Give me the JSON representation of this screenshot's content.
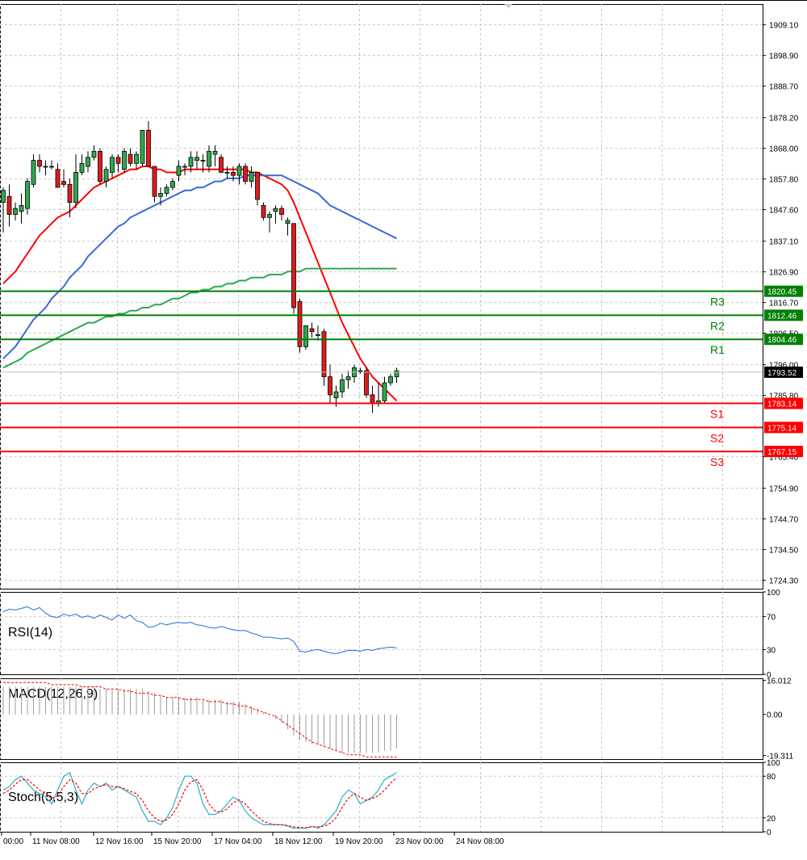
{
  "chart_data": [
    {
      "type": "candlestick",
      "panel": "price",
      "y_ticks": [
        "1909.10",
        "1898.90",
        "1888.70",
        "1878.20",
        "1868.00",
        "1857.80",
        "1847.60",
        "1837.10",
        "1826.90",
        "1816.70",
        "1806.50",
        "1796.00",
        "1785.80",
        "1765.40",
        "1754.90",
        "1744.70",
        "1734.50",
        "1724.30"
      ],
      "ylim": [
        1721.5,
        1916.0
      ],
      "grid": true,
      "current_price": {
        "label": "1793.52",
        "value": 1793.52
      },
      "levels": [
        {
          "name": "R3",
          "label": "1820.45",
          "value": 1820.45,
          "color": "#008000"
        },
        {
          "name": "R2",
          "label": "1812.46",
          "value": 1812.46,
          "color": "#008000"
        },
        {
          "name": "R1",
          "label": "1804.46",
          "value": 1804.46,
          "color": "#008000"
        },
        {
          "name": "S1",
          "label": "1783.14",
          "value": 1783.14,
          "color": "#ff0000"
        },
        {
          "name": "S2",
          "label": "1775.14",
          "value": 1775.14,
          "color": "#ff0000"
        },
        {
          "name": "S3",
          "label": "1767.15",
          "value": 1767.15,
          "color": "#ff0000"
        }
      ],
      "candles": [
        {
          "o": 1850,
          "h": 1855,
          "l": 1840,
          "c": 1854
        },
        {
          "o": 1852,
          "h": 1856,
          "l": 1842,
          "c": 1846
        },
        {
          "o": 1846,
          "h": 1850,
          "l": 1844,
          "c": 1848
        },
        {
          "o": 1847,
          "h": 1853,
          "l": 1843,
          "c": 1849
        },
        {
          "o": 1848,
          "h": 1858,
          "l": 1846,
          "c": 1857
        },
        {
          "o": 1856,
          "h": 1866,
          "l": 1855,
          "c": 1864
        },
        {
          "o": 1864,
          "h": 1866,
          "l": 1860,
          "c": 1862
        },
        {
          "o": 1862,
          "h": 1864,
          "l": 1859,
          "c": 1862
        },
        {
          "o": 1862,
          "h": 1864,
          "l": 1861,
          "c": 1862
        },
        {
          "o": 1861,
          "h": 1863,
          "l": 1855,
          "c": 1855
        },
        {
          "o": 1857,
          "h": 1861,
          "l": 1855,
          "c": 1856
        },
        {
          "o": 1856,
          "h": 1858,
          "l": 1845,
          "c": 1850
        },
        {
          "o": 1850,
          "h": 1866,
          "l": 1848,
          "c": 1860
        },
        {
          "o": 1860,
          "h": 1866,
          "l": 1859,
          "c": 1863
        },
        {
          "o": 1862,
          "h": 1867,
          "l": 1860,
          "c": 1865
        },
        {
          "o": 1865,
          "h": 1869,
          "l": 1864,
          "c": 1867
        },
        {
          "o": 1867,
          "h": 1868,
          "l": 1856,
          "c": 1857
        },
        {
          "o": 1857,
          "h": 1862,
          "l": 1855,
          "c": 1861
        },
        {
          "o": 1860,
          "h": 1866,
          "l": 1858,
          "c": 1865
        },
        {
          "o": 1865,
          "h": 1866,
          "l": 1860,
          "c": 1863
        },
        {
          "o": 1861,
          "h": 1868,
          "l": 1860,
          "c": 1867
        },
        {
          "o": 1866,
          "h": 1868,
          "l": 1862,
          "c": 1863
        },
        {
          "o": 1863,
          "h": 1867,
          "l": 1861,
          "c": 1866
        },
        {
          "o": 1863,
          "h": 1874,
          "l": 1862,
          "c": 1874
        },
        {
          "o": 1874,
          "h": 1877,
          "l": 1862,
          "c": 1862
        },
        {
          "o": 1862,
          "h": 1862,
          "l": 1850,
          "c": 1852
        },
        {
          "o": 1852,
          "h": 1855,
          "l": 1849,
          "c": 1853
        },
        {
          "o": 1853,
          "h": 1856,
          "l": 1852,
          "c": 1855
        },
        {
          "o": 1855,
          "h": 1858,
          "l": 1854,
          "c": 1857
        },
        {
          "o": 1859,
          "h": 1864,
          "l": 1857,
          "c": 1862
        },
        {
          "o": 1862,
          "h": 1863,
          "l": 1859,
          "c": 1862
        },
        {
          "o": 1862,
          "h": 1867,
          "l": 1860,
          "c": 1865
        },
        {
          "o": 1864,
          "h": 1867,
          "l": 1861,
          "c": 1865
        },
        {
          "o": 1864,
          "h": 1866,
          "l": 1860,
          "c": 1864
        },
        {
          "o": 1862,
          "h": 1869,
          "l": 1860,
          "c": 1867
        },
        {
          "o": 1866,
          "h": 1869,
          "l": 1862,
          "c": 1867
        },
        {
          "o": 1865,
          "h": 1866,
          "l": 1860,
          "c": 1860
        },
        {
          "o": 1860,
          "h": 1862,
          "l": 1858,
          "c": 1860
        },
        {
          "o": 1860,
          "h": 1862,
          "l": 1857,
          "c": 1859
        },
        {
          "o": 1859,
          "h": 1863,
          "l": 1856,
          "c": 1862
        },
        {
          "o": 1862,
          "h": 1863,
          "l": 1856,
          "c": 1857
        },
        {
          "o": 1857,
          "h": 1862,
          "l": 1855,
          "c": 1860
        },
        {
          "o": 1860,
          "h": 1860,
          "l": 1849,
          "c": 1851
        },
        {
          "o": 1849,
          "h": 1850,
          "l": 1844,
          "c": 1845
        },
        {
          "o": 1845,
          "h": 1847,
          "l": 1840,
          "c": 1846
        },
        {
          "o": 1847,
          "h": 1849,
          "l": 1843,
          "c": 1848
        },
        {
          "o": 1848,
          "h": 1849,
          "l": 1844,
          "c": 1846
        },
        {
          "o": 1843,
          "h": 1845,
          "l": 1839,
          "c": 1844
        },
        {
          "o": 1843,
          "h": 1843,
          "l": 1813,
          "c": 1815
        },
        {
          "o": 1817,
          "h": 1818,
          "l": 1800,
          "c": 1802
        },
        {
          "o": 1802,
          "h": 1809,
          "l": 1801,
          "c": 1809
        },
        {
          "o": 1808,
          "h": 1810,
          "l": 1805,
          "c": 1807
        },
        {
          "o": 1806,
          "h": 1809,
          "l": 1804,
          "c": 1806
        },
        {
          "o": 1807,
          "h": 1808,
          "l": 1789,
          "c": 1792
        },
        {
          "o": 1792,
          "h": 1796,
          "l": 1783,
          "c": 1786
        },
        {
          "o": 1785,
          "h": 1789,
          "l": 1782,
          "c": 1787
        },
        {
          "o": 1787,
          "h": 1793,
          "l": 1785,
          "c": 1791
        },
        {
          "o": 1791,
          "h": 1794,
          "l": 1788,
          "c": 1792
        },
        {
          "o": 1792,
          "h": 1796,
          "l": 1790,
          "c": 1795
        },
        {
          "o": 1794,
          "h": 1795,
          "l": 1793,
          "c": 1794
        },
        {
          "o": 1794,
          "h": 1795,
          "l": 1785,
          "c": 1786
        },
        {
          "o": 1786,
          "h": 1789,
          "l": 1780,
          "c": 1783
        },
        {
          "o": 1783,
          "h": 1790,
          "l": 1782,
          "c": 1784
        },
        {
          "o": 1784,
          "h": 1792,
          "l": 1783,
          "c": 1790
        },
        {
          "o": 1790,
          "h": 1793,
          "l": 1789,
          "c": 1792
        },
        {
          "o": 1792,
          "h": 1795,
          "l": 1790,
          "c": 1794
        }
      ],
      "series": [
        {
          "color": "#ff0000",
          "values": [
            1823,
            1825,
            1827,
            1830,
            1833,
            1836,
            1839,
            1841,
            1843,
            1845,
            1846,
            1847,
            1849,
            1851,
            1853,
            1855,
            1856,
            1857,
            1858,
            1859,
            1860,
            1861,
            1861,
            1862,
            1862,
            1861,
            1861,
            1860,
            1860,
            1860,
            1861,
            1861,
            1861,
            1861,
            1861,
            1861,
            1861,
            1861,
            1861,
            1861,
            1861,
            1860,
            1860,
            1859,
            1858,
            1857,
            1856,
            1854,
            1850,
            1845,
            1840,
            1835,
            1830,
            1825,
            1820,
            1815,
            1810,
            1806,
            1802,
            1798,
            1795,
            1792,
            1790,
            1788,
            1786,
            1784
          ]
        },
        {
          "color": "#3c69d7",
          "values": [
            1798,
            1800,
            1802,
            1805,
            1808,
            1811,
            1813,
            1815,
            1818,
            1820,
            1822,
            1825,
            1827,
            1829,
            1832,
            1834,
            1836,
            1838,
            1840,
            1842,
            1843,
            1845,
            1846,
            1847,
            1848,
            1849,
            1850,
            1851,
            1852,
            1853,
            1854,
            1854,
            1855,
            1855,
            1856,
            1857,
            1857,
            1858,
            1858,
            1858,
            1859,
            1859,
            1859,
            1859,
            1859,
            1859,
            1859,
            1858,
            1857,
            1856,
            1855,
            1854,
            1853,
            1851,
            1849,
            1848,
            1847,
            1846,
            1845,
            1844,
            1843,
            1842,
            1841,
            1840,
            1839,
            1838
          ]
        },
        {
          "color": "#2ea84f",
          "values": [
            1795,
            1796,
            1797,
            1798,
            1800,
            1801,
            1802,
            1803,
            1804,
            1805,
            1806,
            1807,
            1808,
            1809,
            1810,
            1810,
            1811,
            1812,
            1812,
            1813,
            1813,
            1814,
            1814,
            1815,
            1815,
            1816,
            1816,
            1817,
            1818,
            1818,
            1819,
            1820,
            1820,
            1821,
            1821,
            1822,
            1822,
            1823,
            1823,
            1824,
            1824,
            1825,
            1825,
            1825,
            1826,
            1826,
            1826,
            1827,
            1827,
            1827,
            1828,
            1828,
            1828,
            1828,
            1828,
            1828,
            1828,
            1828,
            1828,
            1828,
            1828,
            1828,
            1828,
            1828,
            1828,
            1828
          ]
        }
      ]
    },
    {
      "type": "line",
      "panel": "rsi",
      "title": "RSI(14)",
      "y_ticks": [
        "100",
        "70",
        "30",
        "0"
      ],
      "ylim": [
        0,
        100
      ],
      "series": [
        {
          "color": "#1e6fd9",
          "values": [
            76,
            79,
            78,
            80,
            82,
            78,
            81,
            74,
            70,
            69,
            73,
            71,
            73,
            69,
            71,
            68,
            72,
            69,
            66,
            72,
            68,
            72,
            65,
            63,
            57,
            58,
            62,
            60,
            62,
            63,
            62,
            63,
            60,
            59,
            57,
            56,
            58,
            56,
            54,
            53,
            53,
            50,
            48,
            45,
            45,
            44,
            43,
            44,
            40,
            28,
            27,
            29,
            30,
            28,
            26,
            25,
            27,
            29,
            29,
            28,
            30,
            29,
            31,
            32,
            33,
            32
          ]
        }
      ]
    },
    {
      "type": "bar",
      "panel": "macd",
      "title": "MACD(12,26,9)",
      "y_ticks": [
        "16.012",
        "0.00",
        "-19.311"
      ],
      "ylim": [
        -21,
        17
      ],
      "series": [
        {
          "color": "#9e9e9e",
          "values": [
            13,
            13,
            13,
            13,
            13,
            13,
            13,
            13,
            13,
            13,
            13,
            13,
            13,
            13,
            13,
            13,
            12,
            12,
            12,
            12,
            12,
            12,
            12,
            12,
            11,
            10,
            9,
            8,
            8,
            8,
            8,
            8,
            8,
            7,
            7,
            7,
            7,
            6,
            6,
            6,
            5,
            4,
            3,
            1,
            0,
            -2,
            -4,
            -7,
            -10,
            -12,
            -13,
            -14,
            -14,
            -15,
            -16,
            -17,
            -18,
            -18,
            -18,
            -18,
            -18,
            -18,
            -18,
            -17,
            -17,
            -16
          ]
        },
        {
          "color": "#ff0000",
          "values": [
            15,
            15,
            15,
            15,
            15,
            15,
            15,
            15,
            14,
            14,
            14,
            14,
            14,
            13,
            13,
            13,
            13,
            12,
            12,
            12,
            11,
            11,
            10,
            10,
            10,
            9,
            9,
            8,
            8,
            8,
            7,
            7,
            7,
            7,
            6,
            6,
            6,
            5,
            5,
            4,
            4,
            3,
            2,
            1,
            0,
            -1,
            -3,
            -5,
            -7,
            -9,
            -11,
            -13,
            -14,
            -15,
            -16,
            -17,
            -18,
            -19,
            -19,
            -19,
            -20,
            -20,
            -20,
            -20,
            -20,
            -20
          ]
        }
      ]
    },
    {
      "type": "line",
      "panel": "stoch",
      "title": "Stoch(5,5,3)",
      "y_ticks": [
        "100",
        "80",
        "20",
        "0"
      ],
      "ylim": [
        0,
        100
      ],
      "series": [
        {
          "color": "#2ab0c8",
          "values": [
            60,
            65,
            75,
            80,
            70,
            60,
            55,
            50,
            40,
            60,
            80,
            85,
            60,
            40,
            60,
            70,
            65,
            70,
            60,
            65,
            60,
            55,
            50,
            30,
            15,
            15,
            10,
            20,
            35,
            60,
            80,
            80,
            70,
            40,
            25,
            25,
            30,
            40,
            50,
            45,
            30,
            20,
            15,
            10,
            10,
            10,
            10,
            8,
            5,
            5,
            5,
            8,
            5,
            10,
            20,
            30,
            50,
            60,
            55,
            40,
            45,
            50,
            60,
            75,
            80,
            85
          ]
        },
        {
          "color": "#ff0000",
          "dashed": true,
          "values": [
            55,
            60,
            68,
            75,
            75,
            68,
            60,
            55,
            48,
            52,
            65,
            75,
            70,
            55,
            55,
            62,
            65,
            68,
            65,
            65,
            62,
            58,
            55,
            45,
            30,
            20,
            15,
            17,
            25,
            40,
            60,
            72,
            75,
            60,
            40,
            30,
            28,
            33,
            42,
            46,
            40,
            30,
            22,
            15,
            12,
            10,
            10,
            9,
            7,
            6,
            6,
            7,
            7,
            8,
            12,
            20,
            35,
            48,
            55,
            50,
            45,
            48,
            52,
            60,
            70,
            78
          ]
        }
      ]
    }
  ],
  "x_ticks": [
    "00:00",
    "11 Nov 08:00",
    "12 Nov 16:00",
    "15 Nov 20:00",
    "17 Nov 04:00",
    "18 Nov 12:00",
    "19 Nov 20:00",
    "23 Nov 00:00",
    "24 Nov 08:00"
  ]
}
